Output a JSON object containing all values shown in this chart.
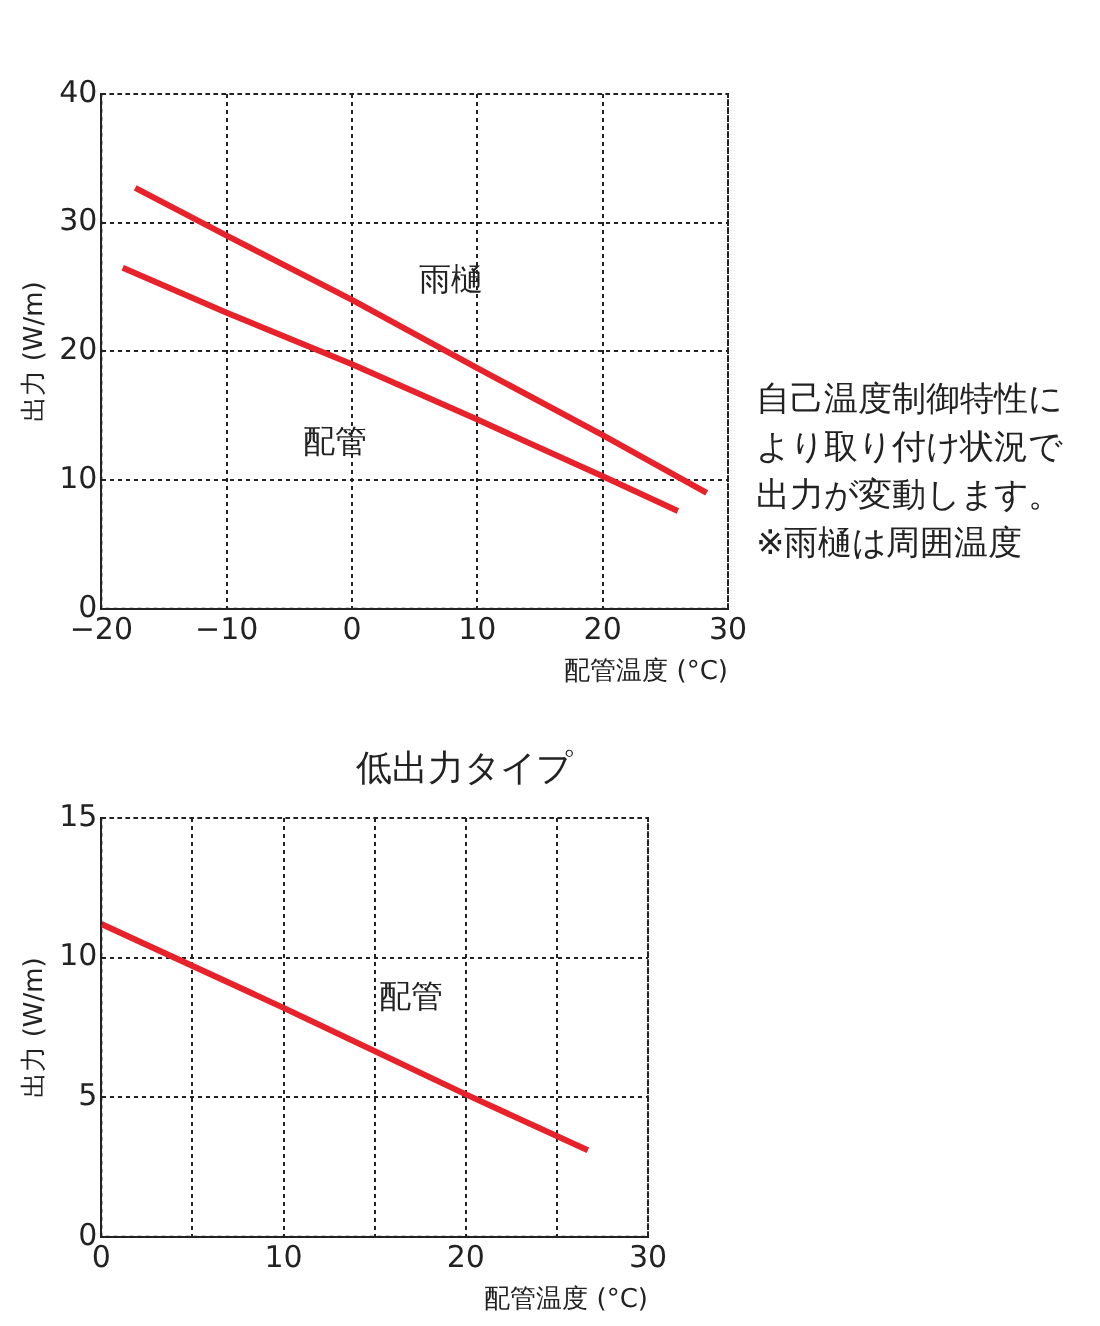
{
  "chart_data": [
    {
      "type": "line",
      "xlabel": "配管温度 (°C)",
      "ylabel": "出力 (W/m)",
      "xlim": [
        -20,
        30
      ],
      "ylim": [
        0,
        40
      ],
      "xticks": [
        -20,
        -10,
        0,
        10,
        20,
        30
      ],
      "yticks": [
        0,
        10,
        20,
        30,
        40
      ],
      "grid": true,
      "legend": false,
      "marker": "none",
      "line_style": "solid",
      "annotations": [
        "自己温度制御特性により取り付け状況で出力が変動します。※雨樋は周囲温度"
      ],
      "series": [
        {
          "name": "雨樋",
          "color": "#e8222a",
          "x": [
            -17.3,
            -10,
            0,
            10,
            20,
            28.3
          ],
          "values": [
            32.7,
            29,
            24,
            18.7,
            13.5,
            9
          ]
        },
        {
          "name": "配管",
          "color": "#e8222a",
          "x": [
            -18.3,
            -10,
            0,
            10,
            20,
            26
          ],
          "values": [
            26.5,
            23,
            19,
            14.7,
            10.3,
            7.6
          ]
        }
      ]
    },
    {
      "type": "line",
      "subtitle": "低出力タイプ",
      "xlabel": "配管温度 (°C)",
      "ylabel": "出力 (W/m)",
      "xlim": [
        0,
        30
      ],
      "ylim": [
        0,
        15
      ],
      "xticks": [
        0,
        {
          "value": 5,
          "label": null
        },
        10,
        {
          "value": 15,
          "label": null
        },
        20,
        {
          "value": 25,
          "label": null
        },
        30
      ],
      "yticks": [
        0,
        5,
        10,
        15
      ],
      "grid": true,
      "legend": false,
      "marker": "none",
      "line_style": "solid",
      "series": [
        {
          "name": "配管",
          "color": "#e8222a",
          "x": [
            0,
            10,
            20,
            26.7
          ],
          "values": [
            11.2,
            8.2,
            5.1,
            3.1
          ]
        }
      ]
    }
  ]
}
